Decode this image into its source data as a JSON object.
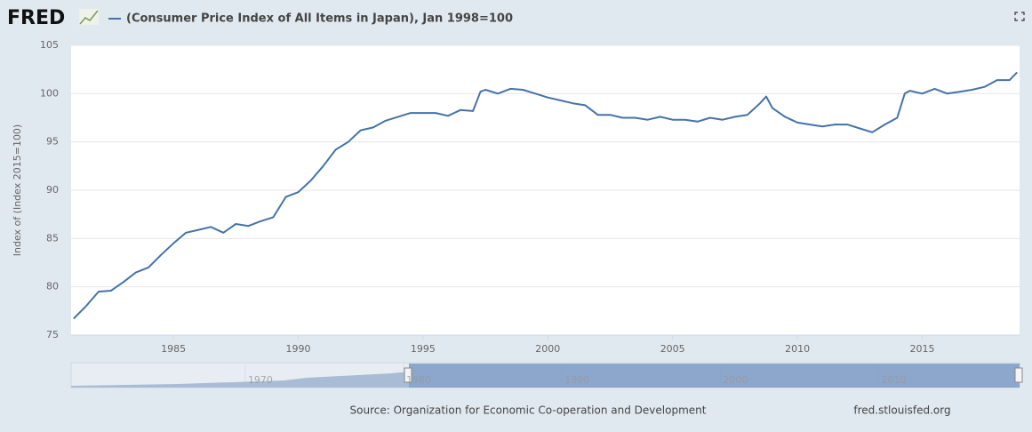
{
  "chart_data": {
    "type": "line",
    "logo": "FRED",
    "title": "(Consumer Price Index of All Items in Japan), Jan 1998=100",
    "y_label": "Index of (Index 2015=100)",
    "source": "Source: Organization for Economic Co-operation and Development",
    "site": "fred.stlouisfed.org",
    "grid": true,
    "xlim": [
      1980.9,
      2018.9
    ],
    "xticks": [
      1985,
      1990,
      1995,
      2000,
      2005,
      2010,
      2015
    ],
    "ylim": [
      75,
      105
    ],
    "yticks": [
      75,
      80,
      85,
      90,
      95,
      100,
      105
    ],
    "x": [
      1981.0,
      1981.5,
      1982.0,
      1982.5,
      1983.0,
      1983.5,
      1984.0,
      1984.5,
      1985.0,
      1985.5,
      1986.0,
      1986.5,
      1987.0,
      1987.5,
      1988.0,
      1988.5,
      1989.0,
      1989.5,
      1990.0,
      1990.5,
      1991.0,
      1991.5,
      1992.0,
      1992.5,
      1993.0,
      1993.5,
      1994.0,
      1994.5,
      1995.0,
      1995.5,
      1996.0,
      1996.5,
      1997.0,
      1997.3,
      1997.5,
      1998.0,
      1998.5,
      1999.0,
      1999.5,
      2000.0,
      2000.5,
      2001.0,
      2001.5,
      2002.0,
      2002.5,
      2003.0,
      2003.5,
      2004.0,
      2004.5,
      2005.0,
      2005.5,
      2006.0,
      2006.5,
      2007.0,
      2007.5,
      2008.0,
      2008.5,
      2008.75,
      2009.0,
      2009.5,
      2010.0,
      2010.5,
      2011.0,
      2011.5,
      2012.0,
      2012.5,
      2013.0,
      2013.5,
      2014.0,
      2014.3,
      2014.5,
      2015.0,
      2015.5,
      2016.0,
      2016.5,
      2017.0,
      2017.5,
      2018.0,
      2018.5,
      2018.8
    ],
    "series": [
      {
        "name": "(Consumer Price Index of All Items in Japan), Jan 1998=100",
        "color": "#4572a7",
        "values": [
          76.7,
          78.0,
          79.5,
          79.6,
          80.5,
          81.5,
          82.0,
          83.3,
          84.5,
          85.6,
          85.9,
          86.2,
          85.6,
          86.5,
          86.3,
          86.8,
          87.2,
          89.3,
          89.8,
          91.0,
          92.5,
          94.2,
          95.0,
          96.2,
          96.5,
          97.2,
          97.6,
          98.0,
          98.0,
          98.0,
          97.7,
          98.3,
          98.2,
          100.2,
          100.4,
          100.0,
          100.5,
          100.4,
          100.0,
          99.6,
          99.3,
          99.0,
          98.8,
          97.8,
          97.8,
          97.5,
          97.5,
          97.3,
          97.6,
          97.3,
          97.3,
          97.1,
          97.5,
          97.3,
          97.6,
          97.8,
          99.0,
          99.7,
          98.5,
          97.6,
          97.0,
          96.8,
          96.6,
          96.8,
          96.8,
          96.4,
          96.0,
          96.8,
          97.5,
          100.0,
          100.3,
          100.0,
          100.5,
          100.0,
          100.2,
          100.4,
          100.7,
          101.4,
          101.4,
          102.2
        ]
      }
    ],
    "navigator": {
      "xlim": [
        1959,
        2018.9
      ],
      "xticks": [
        1970,
        1980,
        1990,
        2000,
        2010
      ]
    }
  }
}
